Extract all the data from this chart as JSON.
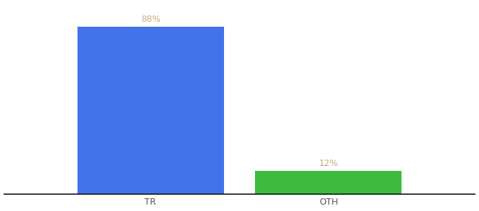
{
  "categories": [
    "TR",
    "OTH"
  ],
  "values": [
    88,
    12
  ],
  "bar_colors": [
    "#4472e8",
    "#3dbb3d"
  ],
  "label_texts": [
    "88%",
    "12%"
  ],
  "label_color": "#c8a882",
  "label_fontsize": 9,
  "tick_fontsize": 9,
  "tick_color": "#555555",
  "background_color": "#ffffff",
  "bar_width": 0.28,
  "ylim": [
    0,
    100
  ],
  "spine_color": "#111111",
  "x_positions": [
    0.28,
    0.62
  ],
  "xlim": [
    0.0,
    0.9
  ]
}
